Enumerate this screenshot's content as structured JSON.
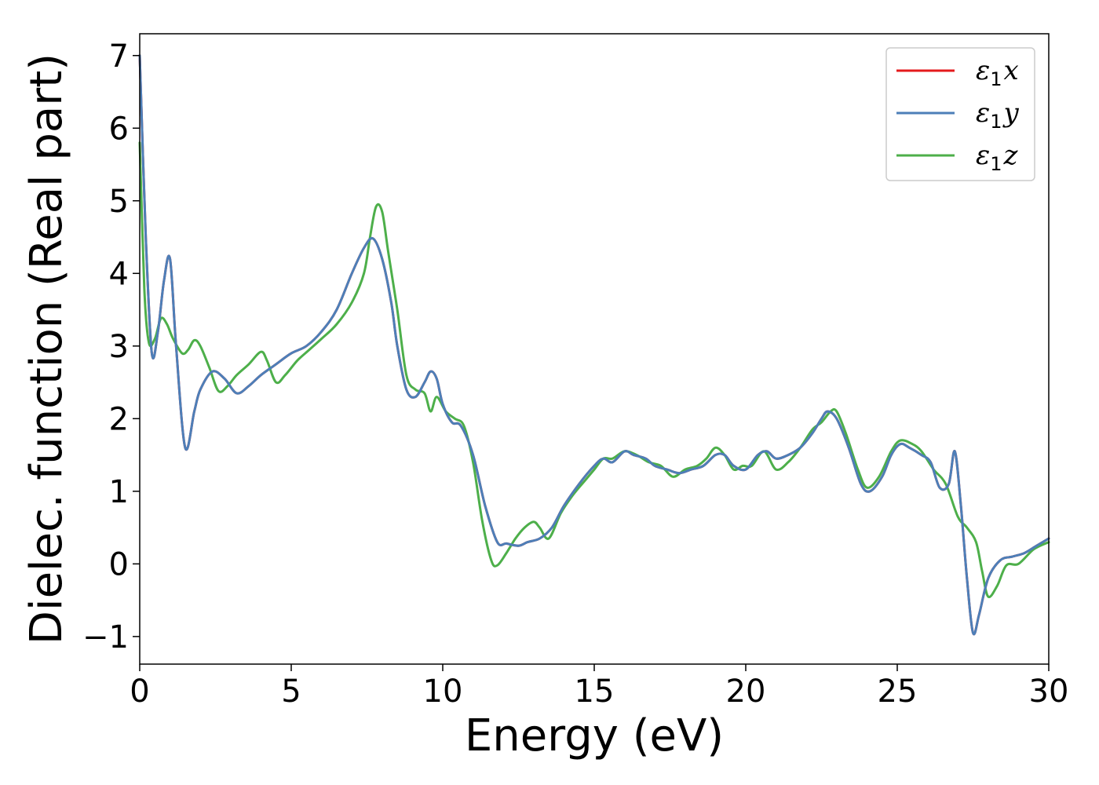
{
  "chart_data": {
    "type": "line",
    "title": "",
    "xlabel": "Energy (eV)",
    "ylabel": "Dielec. function (Real part)",
    "xlim": [
      0,
      30
    ],
    "ylim": [
      -1.38,
      7.3
    ],
    "xticks": [
      0,
      5,
      10,
      15,
      20,
      25,
      30
    ],
    "yticks": [
      -1,
      0,
      1,
      2,
      3,
      4,
      5,
      6,
      7
    ],
    "grid": false,
    "legend_position": "top-right",
    "series": [
      {
        "name": "ε₁x",
        "label_base": "ε",
        "label_sub": "1",
        "label_var": "x",
        "color": "#e41a1c",
        "x": [
          0,
          0.2,
          0.4,
          0.6,
          0.8,
          1.0,
          1.2,
          1.5,
          1.8,
          2.0,
          2.4,
          2.8,
          3.2,
          3.6,
          4.0,
          4.5,
          5.0,
          5.5,
          6.0,
          6.5,
          7.0,
          7.4,
          7.7,
          8.0,
          8.3,
          8.5,
          8.8,
          9.1,
          9.4,
          9.6,
          9.8,
          10.0,
          10.3,
          10.6,
          11.0,
          11.4,
          11.8,
          12.1,
          12.5,
          12.8,
          13.2,
          13.6,
          14.0,
          14.5,
          15.0,
          15.3,
          15.6,
          16.0,
          16.3,
          16.7,
          17.0,
          17.4,
          17.8,
          18.2,
          18.6,
          19.0,
          19.3,
          19.6,
          20.0,
          20.4,
          20.7,
          21.0,
          21.4,
          21.8,
          22.2,
          22.5,
          22.7,
          23.0,
          23.4,
          23.8,
          24.1,
          24.5,
          24.8,
          25.1,
          25.4,
          25.8,
          26.1,
          26.4,
          26.7,
          26.9,
          27.1,
          27.3,
          27.5,
          27.7,
          28.0,
          28.4,
          28.8,
          29.2,
          29.6,
          30.0
        ],
        "values": [
          7.0,
          4.5,
          2.9,
          3.2,
          3.9,
          4.2,
          3.0,
          1.6,
          2.1,
          2.4,
          2.65,
          2.55,
          2.35,
          2.45,
          2.6,
          2.75,
          2.9,
          3.0,
          3.2,
          3.5,
          4.0,
          4.35,
          4.48,
          4.2,
          3.6,
          3.0,
          2.4,
          2.3,
          2.5,
          2.65,
          2.55,
          2.2,
          1.95,
          1.9,
          1.5,
          0.8,
          0.3,
          0.28,
          0.25,
          0.3,
          0.35,
          0.5,
          0.8,
          1.1,
          1.35,
          1.45,
          1.4,
          1.55,
          1.5,
          1.45,
          1.35,
          1.3,
          1.25,
          1.3,
          1.35,
          1.5,
          1.5,
          1.35,
          1.3,
          1.5,
          1.55,
          1.45,
          1.5,
          1.6,
          1.8,
          2.0,
          2.1,
          2.0,
          1.6,
          1.1,
          1.0,
          1.2,
          1.5,
          1.65,
          1.6,
          1.5,
          1.4,
          1.05,
          1.1,
          1.55,
          0.8,
          -0.2,
          -0.95,
          -0.7,
          -0.2,
          0.05,
          0.1,
          0.15,
          0.25,
          0.35
        ]
      },
      {
        "name": "ε₁y",
        "label_base": "ε",
        "label_sub": "1",
        "label_var": "y",
        "color": "#4d7fb8",
        "x": [
          0,
          0.2,
          0.4,
          0.6,
          0.8,
          1.0,
          1.2,
          1.5,
          1.8,
          2.0,
          2.4,
          2.8,
          3.2,
          3.6,
          4.0,
          4.5,
          5.0,
          5.5,
          6.0,
          6.5,
          7.0,
          7.4,
          7.7,
          8.0,
          8.3,
          8.5,
          8.8,
          9.1,
          9.4,
          9.6,
          9.8,
          10.0,
          10.3,
          10.6,
          11.0,
          11.4,
          11.8,
          12.1,
          12.5,
          12.8,
          13.2,
          13.6,
          14.0,
          14.5,
          15.0,
          15.3,
          15.6,
          16.0,
          16.3,
          16.7,
          17.0,
          17.4,
          17.8,
          18.2,
          18.6,
          19.0,
          19.3,
          19.6,
          20.0,
          20.4,
          20.7,
          21.0,
          21.4,
          21.8,
          22.2,
          22.5,
          22.7,
          23.0,
          23.4,
          23.8,
          24.1,
          24.5,
          24.8,
          25.1,
          25.4,
          25.8,
          26.1,
          26.4,
          26.7,
          26.9,
          27.1,
          27.3,
          27.5,
          27.7,
          28.0,
          28.4,
          28.8,
          29.2,
          29.6,
          30.0
        ],
        "values": [
          7.0,
          4.5,
          2.9,
          3.2,
          3.9,
          4.2,
          3.0,
          1.6,
          2.1,
          2.4,
          2.65,
          2.55,
          2.35,
          2.45,
          2.6,
          2.75,
          2.9,
          3.0,
          3.2,
          3.5,
          4.0,
          4.35,
          4.48,
          4.2,
          3.6,
          3.0,
          2.4,
          2.3,
          2.5,
          2.65,
          2.55,
          2.2,
          1.95,
          1.9,
          1.5,
          0.8,
          0.3,
          0.28,
          0.25,
          0.3,
          0.35,
          0.5,
          0.8,
          1.1,
          1.35,
          1.45,
          1.4,
          1.55,
          1.5,
          1.45,
          1.35,
          1.3,
          1.25,
          1.3,
          1.35,
          1.5,
          1.5,
          1.35,
          1.3,
          1.5,
          1.55,
          1.45,
          1.5,
          1.6,
          1.8,
          2.0,
          2.1,
          2.0,
          1.6,
          1.1,
          1.0,
          1.2,
          1.5,
          1.65,
          1.6,
          1.5,
          1.4,
          1.05,
          1.1,
          1.55,
          0.8,
          -0.2,
          -0.95,
          -0.7,
          -0.2,
          0.05,
          0.1,
          0.15,
          0.25,
          0.35
        ]
      },
      {
        "name": "ε₁z",
        "label_base": "ε",
        "label_sub": "1",
        "label_var": "z",
        "color": "#4daf4a",
        "x": [
          0,
          0.15,
          0.3,
          0.5,
          0.7,
          0.9,
          1.1,
          1.4,
          1.6,
          1.8,
          2.0,
          2.3,
          2.6,
          2.9,
          3.2,
          3.6,
          4.0,
          4.2,
          4.5,
          4.8,
          5.2,
          5.6,
          6.0,
          6.5,
          7.0,
          7.4,
          7.6,
          7.8,
          8.0,
          8.2,
          8.5,
          8.8,
          9.1,
          9.4,
          9.6,
          9.8,
          10.1,
          10.4,
          10.7,
          11.0,
          11.3,
          11.6,
          11.8,
          12.1,
          12.4,
          12.7,
          13.0,
          13.2,
          13.5,
          13.9,
          14.3,
          14.7,
          15.0,
          15.3,
          15.6,
          16.0,
          16.4,
          16.8,
          17.2,
          17.6,
          18.0,
          18.4,
          18.7,
          19.0,
          19.3,
          19.6,
          19.9,
          20.2,
          20.6,
          21.0,
          21.4,
          21.8,
          22.2,
          22.5,
          22.8,
          23.0,
          23.3,
          23.7,
          24.0,
          24.4,
          24.8,
          25.1,
          25.5,
          25.8,
          26.2,
          26.6,
          27.0,
          27.3,
          27.6,
          27.8,
          28.0,
          28.3,
          28.6,
          29.0,
          29.5,
          30.0
        ],
        "values": [
          5.8,
          3.8,
          3.05,
          3.1,
          3.38,
          3.3,
          3.1,
          2.9,
          2.95,
          3.08,
          3.0,
          2.7,
          2.38,
          2.45,
          2.6,
          2.75,
          2.92,
          2.8,
          2.5,
          2.6,
          2.8,
          2.95,
          3.1,
          3.3,
          3.6,
          4.0,
          4.5,
          4.92,
          4.85,
          4.3,
          3.5,
          2.6,
          2.4,
          2.35,
          2.1,
          2.3,
          2.1,
          2.0,
          1.9,
          1.4,
          0.6,
          0.05,
          -0.02,
          0.15,
          0.35,
          0.5,
          0.58,
          0.5,
          0.35,
          0.7,
          0.95,
          1.15,
          1.3,
          1.45,
          1.45,
          1.55,
          1.5,
          1.4,
          1.35,
          1.2,
          1.3,
          1.35,
          1.45,
          1.6,
          1.5,
          1.3,
          1.35,
          1.35,
          1.55,
          1.3,
          1.4,
          1.6,
          1.85,
          1.95,
          2.1,
          2.1,
          1.8,
          1.3,
          1.05,
          1.2,
          1.55,
          1.7,
          1.65,
          1.55,
          1.3,
          1.1,
          0.65,
          0.5,
          0.3,
          -0.1,
          -0.45,
          -0.3,
          -0.02,
          0.0,
          0.2,
          0.3
        ]
      }
    ]
  }
}
